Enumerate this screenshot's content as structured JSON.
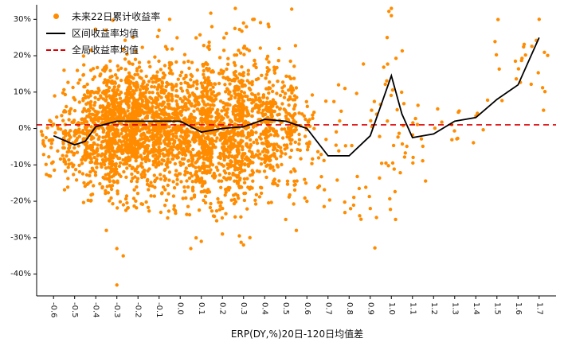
{
  "chart_data": {
    "type": "scatter",
    "title": "",
    "xlabel": "ERP(DY,%)20日-120日均值差",
    "ylabel": "",
    "xlim": [
      -0.68,
      1.78
    ],
    "ylim": [
      -46,
      34
    ],
    "grid": false,
    "legend_position": "upper-left",
    "xticks": {
      "labels": [
        "-0.6",
        "-0.5",
        "-0.4",
        "-0.3",
        "-0.2",
        "-0.1",
        "0.0",
        "0.1",
        "0.2",
        "0.3",
        "0.4",
        "0.5",
        "0.6",
        "0.7",
        "0.8",
        "0.9",
        "1.0",
        "1.1",
        "1.2",
        "1.3",
        "1.4",
        "1.5",
        "1.6",
        "1.7"
      ]
    },
    "yticks": {
      "labels": [
        "30%",
        "20%",
        "10%",
        "0%",
        "-10%",
        "-20%",
        "-30%",
        "-40%"
      ],
      "values": [
        30,
        20,
        10,
        0,
        -10,
        -20,
        -30,
        -40
      ]
    },
    "legend": {
      "items": [
        {
          "label": "未来22日累计收益率",
          "marker": "dot",
          "color": "#FF8C00"
        },
        {
          "label": "区间收益率均值",
          "marker": "line",
          "color": "#000000"
        },
        {
          "label": "全局收益率均值",
          "marker": "dashed-line",
          "color": "#DD0000"
        }
      ]
    },
    "series": [
      {
        "name": "未来22日累计收益率",
        "type": "scatter",
        "color": "#FF8C00",
        "seed": 20240422,
        "clusters": [
          {
            "x0": -0.66,
            "x1": -0.52,
            "n": 55,
            "mean": -3,
            "std": 5
          },
          {
            "x0": -0.56,
            "x1": -0.4,
            "n": 130,
            "mean": -1,
            "std": 7
          },
          {
            "x0": -0.46,
            "x1": -0.3,
            "n": 300,
            "mean": 0,
            "std": 9
          },
          {
            "x0": -0.36,
            "x1": -0.2,
            "n": 430,
            "mean": 0.5,
            "std": 9
          },
          {
            "x0": -0.26,
            "x1": -0.05,
            "n": 650,
            "mean": 0.5,
            "std": 8.5
          },
          {
            "x0": -0.06,
            "x1": 0.15,
            "n": 580,
            "mean": 0,
            "std": 9.5
          },
          {
            "x0": 0.1,
            "x1": 0.3,
            "n": 480,
            "mean": -1,
            "std": 10
          },
          {
            "x0": 0.25,
            "x1": 0.45,
            "n": 380,
            "mean": 1,
            "std": 10
          },
          {
            "x0": 0.4,
            "x1": 0.55,
            "n": 170,
            "mean": 1,
            "std": 8
          },
          {
            "x0": 0.5,
            "x1": 0.63,
            "n": 55,
            "mean": -2,
            "std": 9
          },
          {
            "x0": 0.6,
            "x1": 0.78,
            "n": 24,
            "mean": -8,
            "std": 9
          },
          {
            "x0": 0.78,
            "x1": 0.95,
            "n": 22,
            "mean": -6,
            "std": 12
          },
          {
            "x0": 0.94,
            "x1": 1.06,
            "n": 28,
            "mean": 6,
            "std": 14
          },
          {
            "x0": 1.05,
            "x1": 1.2,
            "n": 14,
            "mean": -5,
            "std": 6
          },
          {
            "x0": 1.2,
            "x1": 1.45,
            "n": 14,
            "mean": 1.5,
            "std": 4
          },
          {
            "x0": 1.45,
            "x1": 1.75,
            "n": 24,
            "mean": 13,
            "std": 7
          }
        ],
        "extra_points": [
          [
            -0.3,
            -43
          ],
          [
            -0.27,
            -35
          ],
          [
            -0.3,
            -33
          ],
          [
            -0.35,
            -28
          ],
          [
            0.05,
            -33
          ],
          [
            0.1,
            -31
          ],
          [
            0.2,
            -29
          ],
          [
            0.3,
            -32
          ],
          [
            0.33,
            -30
          ],
          [
            0.5,
            -25
          ],
          [
            0.55,
            -28
          ],
          [
            0.6,
            -20
          ],
          [
            0.85,
            -24
          ],
          [
            0.9,
            -22
          ],
          [
            1.02,
            -25
          ],
          [
            -0.05,
            30
          ],
          [
            -0.1,
            27
          ],
          [
            0.15,
            28
          ],
          [
            0.3,
            29
          ],
          [
            0.35,
            30
          ],
          [
            0.42,
            28
          ],
          [
            0.75,
            12
          ],
          [
            0.78,
            11
          ],
          [
            0.98,
            25
          ],
          [
            1.0,
            33
          ],
          [
            1.0,
            31
          ],
          [
            1.7,
            30
          ]
        ]
      },
      {
        "name": "区间收益率均值",
        "type": "line",
        "color": "#000000",
        "points": [
          [
            -0.6,
            -2
          ],
          [
            -0.5,
            -4.5
          ],
          [
            -0.45,
            -3.5
          ],
          [
            -0.4,
            0.5
          ],
          [
            -0.3,
            2
          ],
          [
            -0.2,
            2
          ],
          [
            -0.1,
            2
          ],
          [
            0.0,
            2
          ],
          [
            0.1,
            -1
          ],
          [
            0.2,
            0
          ],
          [
            0.3,
            0.5
          ],
          [
            0.4,
            2.5
          ],
          [
            0.5,
            2
          ],
          [
            0.6,
            0
          ],
          [
            0.7,
            -7.5
          ],
          [
            0.8,
            -7.5
          ],
          [
            0.9,
            -2
          ],
          [
            1.0,
            14.5
          ],
          [
            1.05,
            4
          ],
          [
            1.1,
            -2.5
          ],
          [
            1.2,
            -1.5
          ],
          [
            1.3,
            2
          ],
          [
            1.4,
            3
          ],
          [
            1.5,
            8
          ],
          [
            1.6,
            12
          ],
          [
            1.7,
            25
          ]
        ]
      },
      {
        "name": "全局收益率均值",
        "type": "hline",
        "color": "#DD0000",
        "y": 1.0,
        "dash": true
      }
    ]
  }
}
